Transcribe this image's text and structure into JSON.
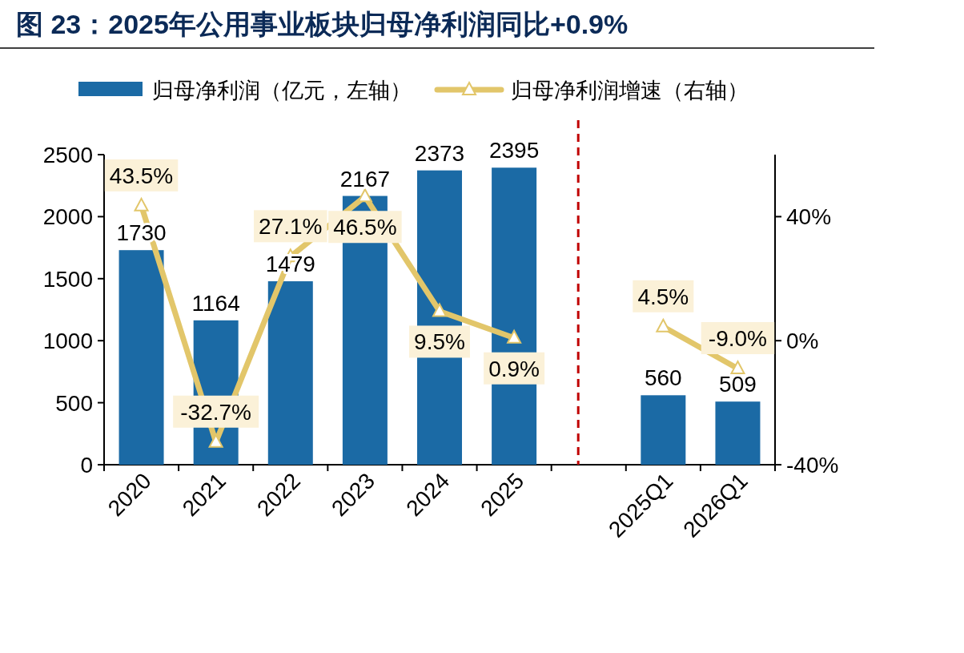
{
  "chart_data": {
    "type": "bar",
    "title": "图 23：2025年公用事业板块归母净利润同比+0.9%",
    "categories": [
      "2020",
      "2021",
      "2022",
      "2023",
      "2024",
      "2025",
      null,
      "2025Q1",
      "2026Q1"
    ],
    "series": [
      {
        "name": "归母净利润（亿元，左轴）",
        "type": "bar",
        "color": "#1b6aa5",
        "values": [
          1730,
          1164,
          1479,
          2167,
          2373,
          2395,
          null,
          560,
          509
        ]
      },
      {
        "name": "归母净利润增速（右轴）",
        "type": "line",
        "axis": "y2",
        "color": "#e2c66a",
        "marker": "triangle",
        "values": [
          43.5,
          -32.7,
          27.1,
          46.5,
          9.5,
          0.9,
          null,
          4.5,
          -9.0
        ],
        "value_labels": [
          "43.5%",
          "-32.7%",
          "27.1%",
          "46.5%",
          "9.5%",
          "0.9%",
          null,
          "4.5%",
          "-9.0%"
        ]
      }
    ],
    "data_labels": true,
    "ylim": [
      0,
      2500
    ],
    "yticks": [
      0,
      500,
      1000,
      1500,
      2000,
      2500
    ],
    "y2lim": [
      -40,
      60
    ],
    "y2ticks": [
      {
        "value": -40,
        "label": "-40%"
      },
      {
        "value": 0,
        "label": "0%"
      },
      {
        "value": 40,
        "label": "40%"
      }
    ],
    "legend": "top",
    "grid": false
  }
}
